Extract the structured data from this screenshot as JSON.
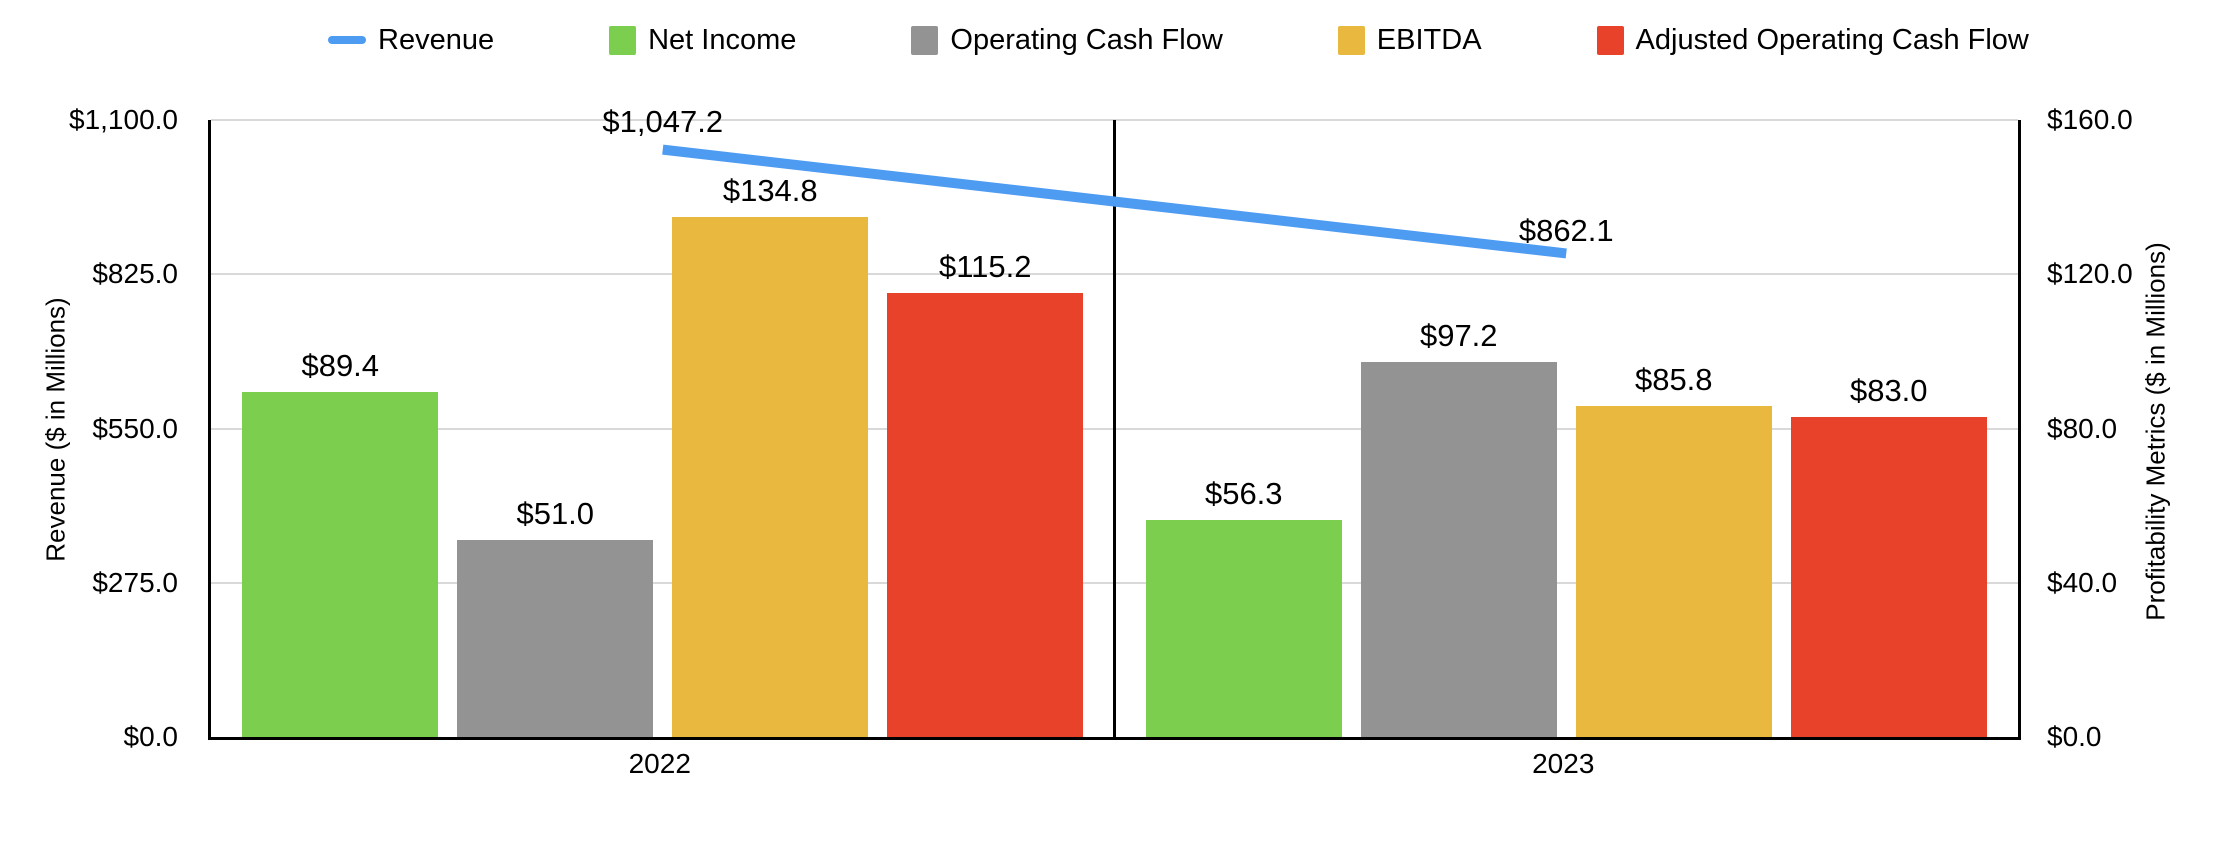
{
  "chart_data": {
    "type": "combo",
    "categories": [
      "2022",
      "2023"
    ],
    "series": [
      {
        "name": "Revenue",
        "kind": "line",
        "axis": "left",
        "color": "#4E9BF2",
        "values": [
          1047.2,
          862.1
        ],
        "labels": [
          "$1,047.2",
          "$862.1"
        ]
      },
      {
        "name": "Net Income",
        "kind": "bar",
        "axis": "right",
        "color": "#7BCE4E",
        "values": [
          89.4,
          56.3
        ],
        "labels": [
          "$89.4",
          "$56.3"
        ]
      },
      {
        "name": "Operating Cash Flow",
        "kind": "bar",
        "axis": "right",
        "color": "#939393",
        "values": [
          51.0,
          97.2
        ],
        "labels": [
          "$51.0",
          "$97.2"
        ]
      },
      {
        "name": "EBITDA",
        "kind": "bar",
        "axis": "right",
        "color": "#E9B83E",
        "values": [
          134.8,
          85.8
        ],
        "labels": [
          "$134.8",
          "$85.8"
        ]
      },
      {
        "name": "Adjusted Operating Cash Flow",
        "kind": "bar",
        "axis": "right",
        "color": "#E9422B",
        "values": [
          115.2,
          83.0
        ],
        "labels": [
          "$115.2",
          "$83.0"
        ]
      }
    ],
    "left_axis": {
      "title": "Revenue ($ in Millions)",
      "min": 0,
      "max": 1100,
      "ticks": [
        "$0.0",
        "$275.0",
        "$550.0",
        "$825.0",
        "$1,100.0"
      ]
    },
    "right_axis": {
      "title": "Profitability Metrics ($ in Millions)",
      "min": 0,
      "max": 160,
      "ticks": [
        "$0.0",
        "$40.0",
        "$80.0",
        "$120.0",
        "$160.0"
      ]
    },
    "grid": true,
    "legend_position": "top",
    "colors": {
      "gridline": "#D9D9D9",
      "axis_line": "#000000",
      "text": "#000000",
      "background": "#FFFFFF"
    }
  }
}
